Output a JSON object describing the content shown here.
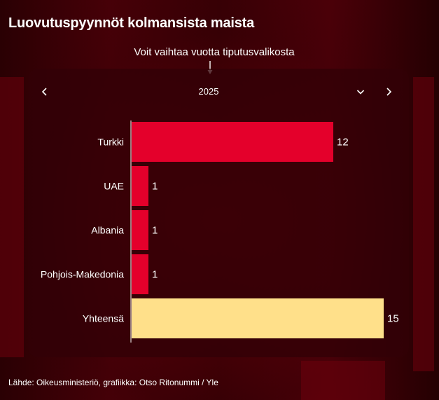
{
  "header": {
    "title": "Luovutuspyynnöt kolmansista maista",
    "hint": "Voit vaihtaa vuotta tiputusvalikosta"
  },
  "year_selector": {
    "selected": "2025",
    "prev_icon": "chevron-left-icon",
    "next_icon": "chevron-right-icon",
    "dropdown_icon": "chevron-down-icon"
  },
  "colors": {
    "bar_primary": "#e4002b",
    "bar_total": "#ffe08a",
    "background": "#3a0005"
  },
  "chart_data": {
    "type": "bar",
    "orientation": "horizontal",
    "categories": [
      "Turkki",
      "UAE",
      "Albania",
      "Pohjois-Makedonia",
      "Yhteensä"
    ],
    "values": [
      12,
      1,
      1,
      1,
      15
    ],
    "data_labels": [
      "12",
      "1",
      "1",
      "1",
      "15"
    ],
    "highlight_total": "Yhteensä",
    "xlim": [
      0,
      15
    ],
    "grid": false,
    "legend": "none"
  },
  "footer": {
    "source": "Lähde: Oikeusministeriö, grafiikka: Otso Ritonummi / Yle"
  }
}
